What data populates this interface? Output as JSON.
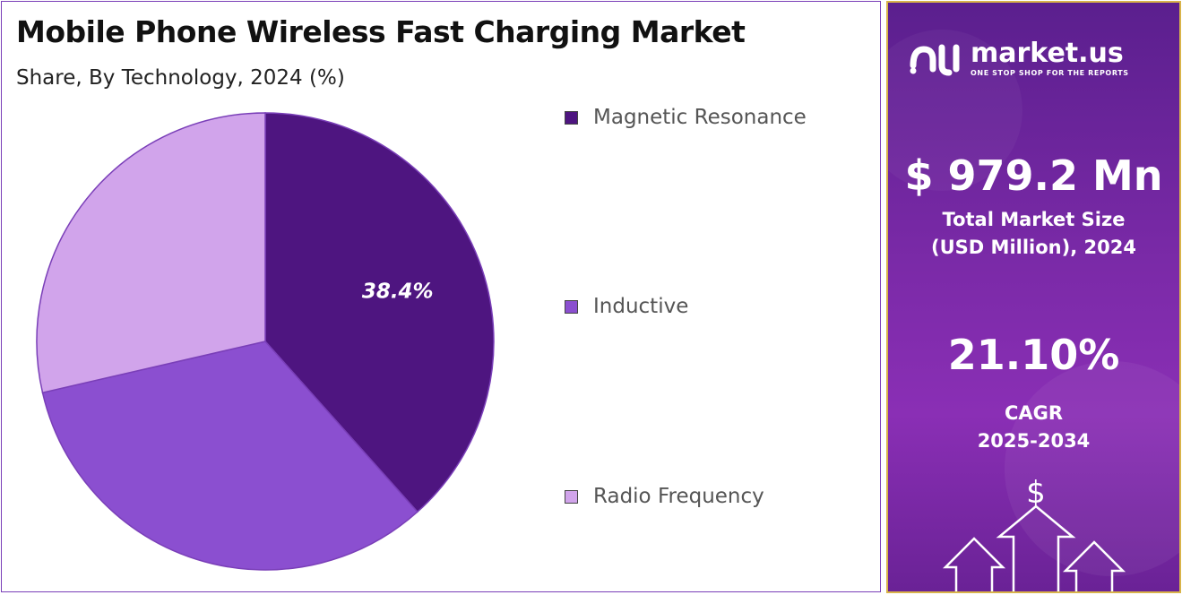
{
  "header": {
    "title": "Mobile Phone Wireless Fast Charging Market",
    "subtitle": "Share, By Technology, 2024 (%)"
  },
  "chart_data": {
    "type": "pie",
    "title": "Mobile Phone Wireless Fast Charging Market",
    "subtitle": "Share, By Technology, 2024 (%)",
    "start_angle_deg": 0,
    "direction": "clockwise",
    "legend_position": "right",
    "slices": [
      {
        "label": "Magnetic Resonance",
        "value": 38.4,
        "display_label": "38.4%",
        "color": "#4e1580"
      },
      {
        "label": "Inductive",
        "value": 33.0,
        "display_label": "",
        "color": "#8b4fd0"
      },
      {
        "label": "Radio Frequency",
        "value": 28.6,
        "display_label": "",
        "color": "#d1a4eb"
      }
    ]
  },
  "legend": {
    "items": [
      {
        "label": "Magnetic Resonance",
        "color": "#4e1580"
      },
      {
        "label": "Inductive",
        "color": "#8b4fd0"
      },
      {
        "label": "Radio Frequency",
        "color": "#d1a4eb"
      }
    ]
  },
  "sidebar": {
    "brand_name": "market.us",
    "brand_tagline": "ONE STOP SHOP FOR THE REPORTS",
    "market_size_value": "$ 979.2 Mn",
    "market_size_label_line1": "Total Market Size",
    "market_size_label_line2": "(USD Million), 2024",
    "cagr_value": "21.10%",
    "cagr_label": "CAGR",
    "cagr_period": "2025-2034",
    "dollar_symbol": "$",
    "icons": [
      "logo-icon",
      "dollar-icon",
      "up-arrow-icon"
    ]
  }
}
